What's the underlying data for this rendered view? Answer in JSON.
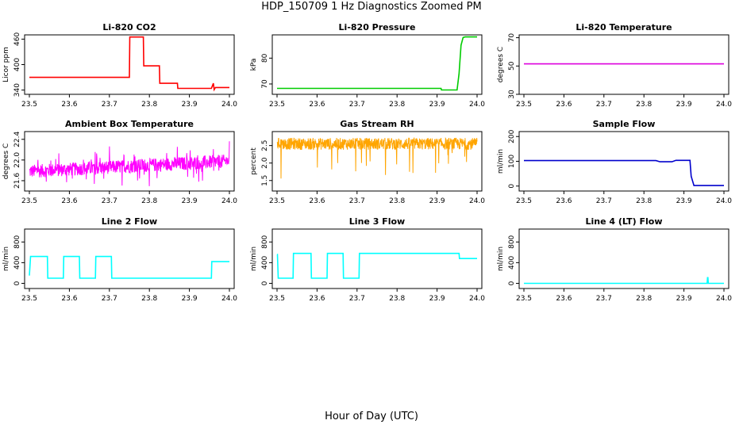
{
  "figure": {
    "title": "HDP_150709  1 Hz Diagnostics Zoomed PM",
    "xlabel": "Hour of Day (UTC)"
  },
  "chart_data": [
    {
      "type": "line",
      "title": "Li-820 CO2",
      "ylabel": "Licor ppm",
      "color": "#ff0000",
      "xlim": [
        23.5,
        24.0
      ],
      "ylim": [
        330,
        470
      ],
      "xticks": [
        "23.5",
        "23.6",
        "23.7",
        "23.8",
        "23.9",
        "24.0"
      ],
      "yticks": [
        {
          "v": 340,
          "t": "340"
        },
        {
          "v": 400,
          "t": "400"
        },
        {
          "v": 460,
          "t": "460"
        }
      ],
      "x": [
        23.5,
        23.6,
        23.75,
        23.751,
        23.785,
        23.786,
        23.825,
        23.826,
        23.87,
        23.871,
        23.955,
        23.96,
        23.962,
        23.965,
        24.0
      ],
      "y": [
        370,
        370,
        370,
        465,
        465,
        397,
        397,
        356,
        356,
        344,
        344,
        356,
        341,
        346,
        346
      ]
    },
    {
      "type": "line",
      "title": "Li-820 Pressure",
      "ylabel": "kPa",
      "color": "#00cc00",
      "xlim": [
        23.5,
        24.0
      ],
      "ylim": [
        66,
        89
      ],
      "xticks": [
        "23.5",
        "23.6",
        "23.7",
        "23.8",
        "23.9",
        "24.0"
      ],
      "yticks": [
        {
          "v": 70,
          "t": "70"
        },
        {
          "v": 80,
          "t": "80"
        }
      ],
      "x": [
        23.5,
        23.91,
        23.911,
        23.95,
        23.955,
        23.96,
        23.965,
        23.97,
        24.0
      ],
      "y": [
        68.3,
        68.3,
        67.7,
        67.7,
        74,
        85,
        88,
        88.2,
        88.2
      ]
    },
    {
      "type": "line",
      "title": "Li-820 Temperature",
      "ylabel": "degrees C",
      "color": "#dd00dd",
      "xlim": [
        23.5,
        24.0
      ],
      "ylim": [
        30,
        72
      ],
      "xticks": [
        "23.5",
        "23.6",
        "23.7",
        "23.8",
        "23.9",
        "24.0"
      ],
      "yticks": [
        {
          "v": 30,
          "t": "30"
        },
        {
          "v": 50,
          "t": "50"
        },
        {
          "v": 70,
          "t": "70"
        }
      ],
      "x": [
        23.5,
        24.0
      ],
      "y": [
        51.5,
        51.5
      ]
    },
    {
      "type": "line",
      "title": "Ambient Box Temperature",
      "ylabel": "degrees C",
      "color": "#ff00ff",
      "xlim": [
        23.5,
        24.0
      ],
      "ylim": [
        21.4,
        22.55
      ],
      "xticks": [
        "23.5",
        "23.6",
        "23.7",
        "23.8",
        "23.9",
        "24.0"
      ],
      "yticks": [
        {
          "v": 21.6,
          "t": "21.6"
        },
        {
          "v": 22.0,
          "t": "22.0"
        },
        {
          "v": 22.4,
          "t": "22.4"
        }
      ],
      "noise": {
        "n": 700,
        "center_start": 21.78,
        "center_end": 21.98,
        "amp": 0.13,
        "spike_rate": 0.05,
        "spike_amp": 0.3
      }
    },
    {
      "type": "line",
      "title": "Gas Stream RH",
      "ylabel": "percent",
      "color": "#ffa500",
      "xlim": [
        23.5,
        24.0
      ],
      "ylim": [
        1.2,
        2.9
      ],
      "xticks": [
        "23.5",
        "23.6",
        "23.7",
        "23.8",
        "23.9",
        "24.0"
      ],
      "yticks": [
        {
          "v": 1.5,
          "t": "1.5"
        },
        {
          "v": 2.0,
          "t": "2.0"
        },
        {
          "v": 2.5,
          "t": "2.5"
        }
      ],
      "noise": {
        "n": 700,
        "center_start": 2.55,
        "center_end": 2.55,
        "amp": 0.17,
        "spike_rate": 0.03,
        "spike_amp": -0.9
      }
    },
    {
      "type": "line",
      "title": "Sample Flow",
      "ylabel": "ml/min",
      "color": "#0000cc",
      "xlim": [
        23.5,
        24.0
      ],
      "ylim": [
        -20,
        220
      ],
      "xticks": [
        "23.5",
        "23.6",
        "23.7",
        "23.8",
        "23.9",
        "24.0"
      ],
      "yticks": [
        {
          "v": 0,
          "t": "0"
        },
        {
          "v": 100,
          "t": "100"
        },
        {
          "v": 200,
          "t": "200"
        }
      ],
      "x": [
        23.5,
        23.83,
        23.84,
        23.87,
        23.88,
        23.915,
        23.918,
        23.925,
        24.0
      ],
      "y": [
        103,
        103,
        98,
        98,
        104,
        104,
        40,
        2,
        2
      ]
    },
    {
      "type": "line",
      "title": "Line 2 Flow",
      "ylabel": "ml/min",
      "color": "#00ffff",
      "xlim": [
        23.5,
        24.0
      ],
      "ylim": [
        -100,
        1050
      ],
      "xticks": [
        "23.5",
        "23.6",
        "23.7",
        "23.8",
        "23.9",
        "24.0"
      ],
      "yticks": [
        {
          "v": 0,
          "t": "0"
        },
        {
          "v": 400,
          "t": "400"
        },
        {
          "v": 800,
          "t": "800"
        }
      ],
      "x": [
        23.5,
        23.503,
        23.545,
        23.546,
        23.585,
        23.586,
        23.625,
        23.626,
        23.665,
        23.666,
        23.705,
        23.706,
        23.955,
        23.956,
        24.0
      ],
      "y": [
        150,
        520,
        520,
        100,
        100,
        520,
        520,
        100,
        100,
        520,
        520,
        100,
        100,
        420,
        420
      ]
    },
    {
      "type": "line",
      "title": "Line 3 Flow",
      "ylabel": "ml/min",
      "color": "#00ffff",
      "xlim": [
        23.5,
        24.0
      ],
      "ylim": [
        -100,
        1050
      ],
      "xticks": [
        "23.5",
        "23.6",
        "23.7",
        "23.8",
        "23.9",
        "24.0"
      ],
      "yticks": [
        {
          "v": 0,
          "t": "0"
        },
        {
          "v": 400,
          "t": "400"
        },
        {
          "v": 800,
          "t": "800"
        }
      ],
      "x": [
        23.5,
        23.501,
        23.503,
        23.54,
        23.541,
        23.585,
        23.586,
        23.625,
        23.626,
        23.665,
        23.666,
        23.705,
        23.706,
        23.955,
        23.956,
        24.0
      ],
      "y": [
        560,
        560,
        100,
        100,
        580,
        580,
        100,
        100,
        580,
        580,
        100,
        100,
        580,
        580,
        480,
        480
      ]
    },
    {
      "type": "line",
      "title": "Line 4 (LT) Flow",
      "ylabel": "ml/min",
      "color": "#00ffff",
      "xlim": [
        23.5,
        24.0
      ],
      "ylim": [
        -100,
        1050
      ],
      "xticks": [
        "23.5",
        "23.6",
        "23.7",
        "23.8",
        "23.9",
        "24.0"
      ],
      "yticks": [
        {
          "v": 0,
          "t": "0"
        },
        {
          "v": 400,
          "t": "400"
        },
        {
          "v": 800,
          "t": "800"
        }
      ],
      "x": [
        23.5,
        23.958,
        23.959,
        23.96,
        23.961,
        23.962,
        24.0
      ],
      "y": [
        0,
        0,
        110,
        110,
        0,
        0,
        0
      ]
    }
  ]
}
